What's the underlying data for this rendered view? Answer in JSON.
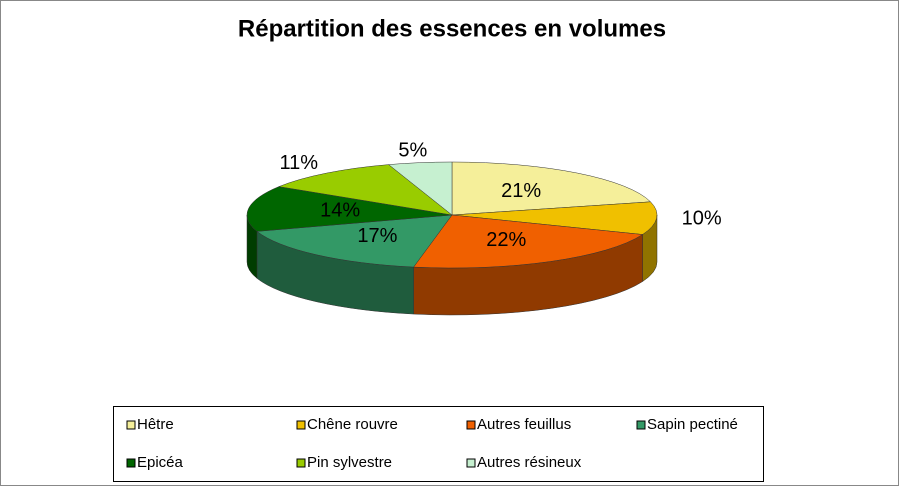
{
  "chart_data": {
    "type": "pie3d",
    "title": "Répartition des essences en volumes",
    "categories": [
      "Hêtre",
      "Chêne rouvre",
      "Autres feuillus",
      "Sapin pectiné",
      "Epicéa",
      "Pin sylvestre",
      "Autres résineux"
    ],
    "values": [
      21,
      10,
      22,
      17,
      14,
      11,
      5
    ],
    "value_labels": [
      "21%",
      "10%",
      "22%",
      "17%",
      "14%",
      "11%",
      "5%"
    ],
    "colors": [
      "#f5ef9a",
      "#f0c000",
      "#f06000",
      "#339966",
      "#006600",
      "#99cc00",
      "#c6f0d0"
    ],
    "legend": "bottom"
  }
}
